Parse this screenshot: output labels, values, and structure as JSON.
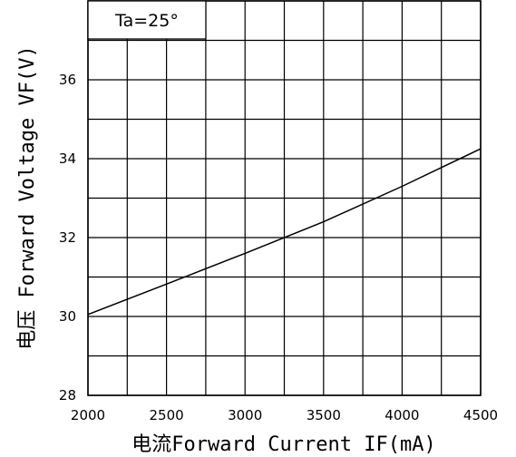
{
  "chart_data": {
    "type": "line",
    "title": "",
    "annotation": "Ta=25°",
    "xlabel": "电流Forward Current IF(mA)",
    "ylabel": "电压 Forward Voltage VF(V)",
    "xlim": [
      2000,
      4500
    ],
    "ylim": [
      28,
      38
    ],
    "xticks": [
      "2000",
      "2500",
      "3000",
      "3500",
      "4000",
      "4500"
    ],
    "yticks": [
      "28",
      "30",
      "32",
      "34",
      "36"
    ],
    "grid": true,
    "series": [
      {
        "x": [
          2000,
          2500,
          3000,
          3500,
          4000,
          4500
        ],
        "y": [
          30.05,
          30.82,
          31.6,
          32.4,
          33.3,
          34.25
        ]
      }
    ]
  }
}
